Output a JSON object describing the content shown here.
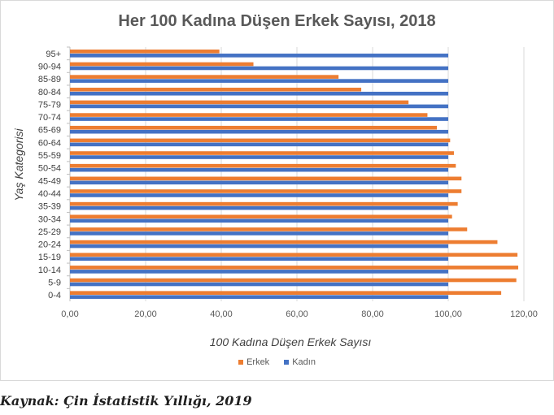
{
  "chart_data": {
    "type": "bar",
    "orientation": "horizontal",
    "title": "Her 100 Kadına Düşen Erkek Sayısı, 2018",
    "xlabel": "100 Kadına Düşen Erkek Sayısı",
    "ylabel": "Yaş Kategorisi",
    "xlim": [
      0,
      120
    ],
    "xticks": [
      "0,00",
      "20,00",
      "40,00",
      "60,00",
      "80,00",
      "100,00",
      "120,00"
    ],
    "grid": true,
    "legend_position": "bottom",
    "categories": [
      "0-4",
      "5-9",
      "10-14",
      "15-19",
      "20-24",
      "25-29",
      "30-34",
      "35-39",
      "40-44",
      "45-49",
      "50-54",
      "55-59",
      "60-64",
      "65-69",
      "70-74",
      "75-79",
      "80-84",
      "85-89",
      "90-94",
      "95+"
    ],
    "series": [
      {
        "name": "Erkek",
        "color": "#ed7d31",
        "values": [
          114.0,
          118.0,
          118.5,
          118.3,
          113.0,
          105.0,
          101.0,
          102.5,
          103.5,
          103.5,
          102.0,
          101.5,
          100.5,
          97.0,
          94.5,
          89.5,
          77.0,
          71.0,
          48.5,
          39.5
        ]
      },
      {
        "name": "Kadın",
        "color": "#4472c4",
        "values": [
          100,
          100,
          100,
          100,
          100,
          100,
          100,
          100,
          100,
          100,
          100,
          100,
          100,
          100,
          100,
          100,
          100,
          100,
          100,
          100
        ]
      }
    ]
  },
  "source": "Kaynak: Çin İstatistik Yıllığı, 2019"
}
